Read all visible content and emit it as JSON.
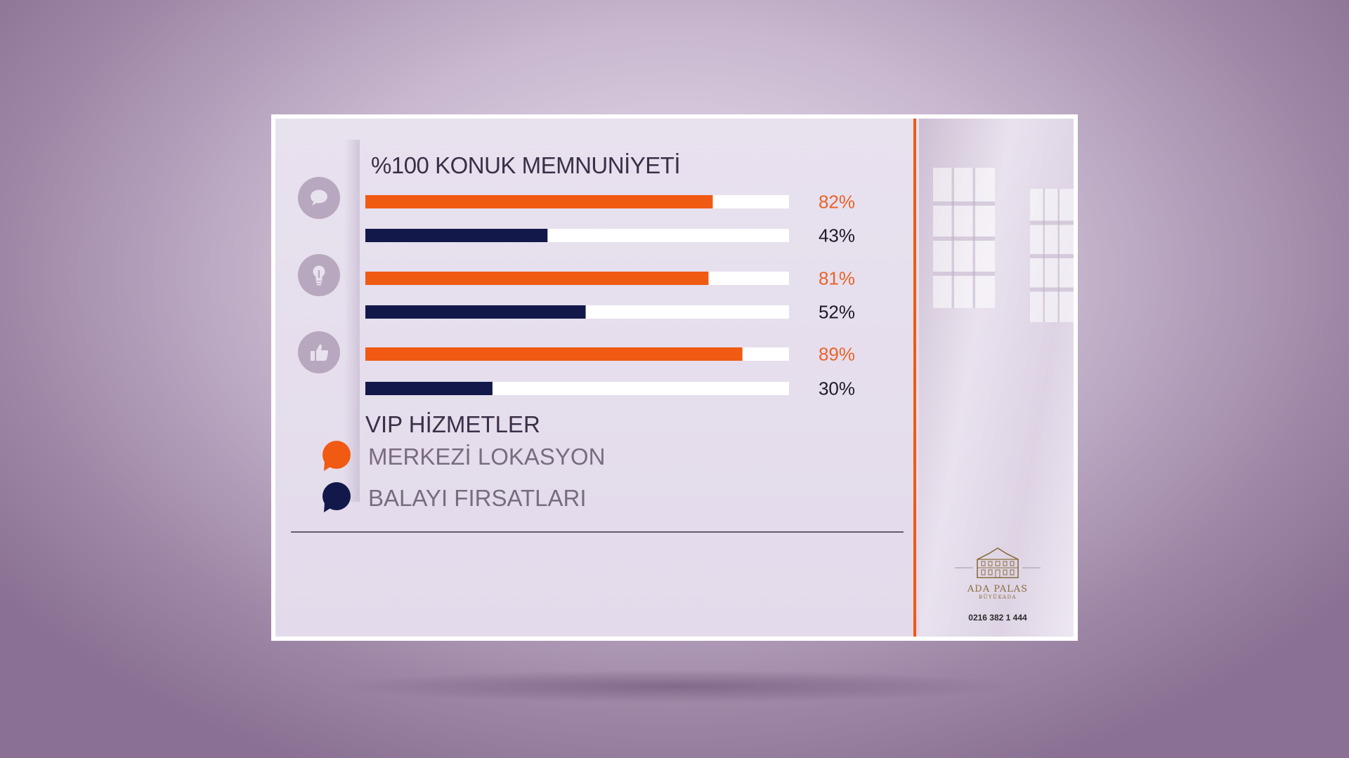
{
  "chart_data": {
    "type": "bar",
    "orientation": "horizontal",
    "title": "%100 KONUK MEMNUNİYETİ",
    "xlim": [
      0,
      100
    ],
    "groups": [
      {
        "icon": "speech-bubble-icon",
        "merkezi": 82,
        "balayi": 43
      },
      {
        "icon": "lightbulb-icon",
        "merkezi": 81,
        "balayi": 52
      },
      {
        "icon": "thumbs-up-icon",
        "merkezi": 89,
        "balayi": 30
      }
    ],
    "series": [
      {
        "name": "MERKEZİ LOKASYON",
        "color": "#f05a12",
        "values": [
          82,
          81,
          89
        ]
      },
      {
        "name": "BALAYI FIRSATLARI",
        "color": "#12184a",
        "values": [
          43,
          52,
          30
        ]
      }
    ],
    "value_labels": [
      "82%",
      "43%",
      "81%",
      "52%",
      "89%",
      "30%"
    ],
    "legend_title": "VIP HİZMETLER",
    "legend_placement": "bottom-left"
  },
  "colors": {
    "accent_orange": "#f05a12",
    "navy": "#12184a",
    "track": "#ffffff",
    "orange_label": "#e8632a",
    "dark_label": "#1e1a28"
  },
  "brand": {
    "name": "ADA PALAS",
    "sub": "BÜYÜKADA",
    "phone": "0216 382 1 444"
  }
}
